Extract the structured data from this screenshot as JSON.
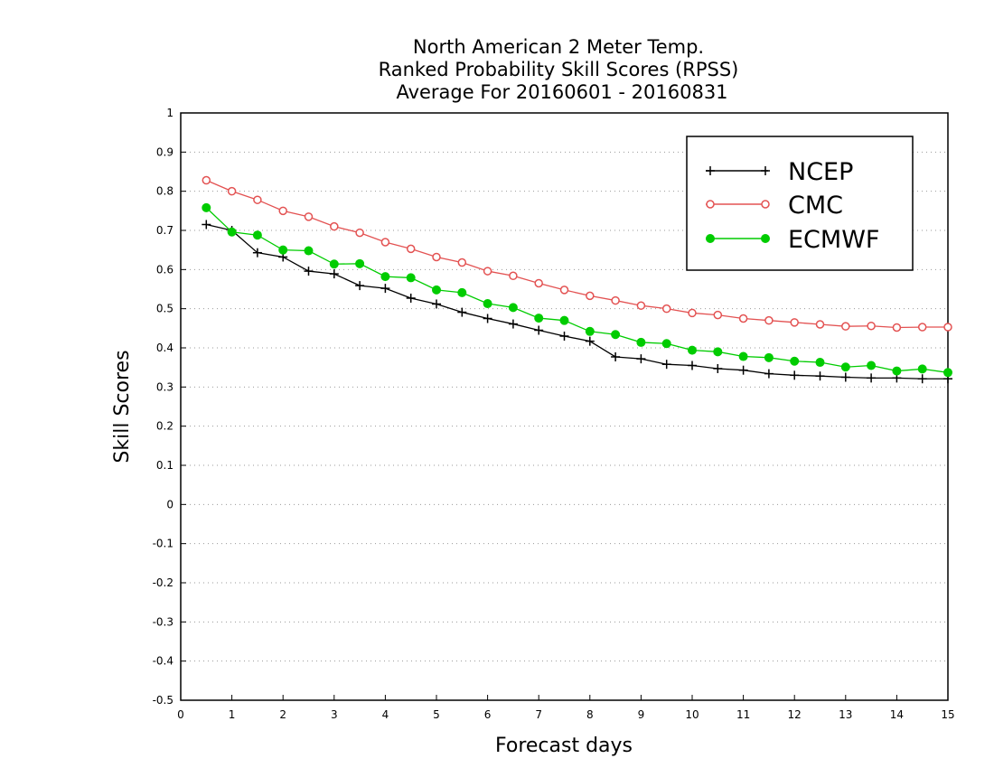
{
  "chart_data": {
    "type": "line",
    "title": [
      "North American 2 Meter Temp.",
      "Ranked Probability Skill Scores (RPSS)",
      "Average For 20160601 - 20160831"
    ],
    "xlabel": "Forecast days",
    "ylabel": "Skill Scores",
    "xlim": [
      0,
      15
    ],
    "ylim": [
      -0.5,
      1
    ],
    "xticks": [
      "0",
      "1",
      "2",
      "3",
      "4",
      "5",
      "6",
      "7",
      "8",
      "9",
      "10",
      "11",
      "12",
      "13",
      "14",
      "15"
    ],
    "yticks": [
      "-0.5",
      "-0.4",
      "-0.3",
      "-0.2",
      "-0.1",
      "0",
      "0.1",
      "0.2",
      "0.3",
      "0.4",
      "0.5",
      "0.6",
      "0.7",
      "0.8",
      "0.9",
      "1"
    ],
    "grid": "horizontal dotted",
    "legend_position": "top-right",
    "x": [
      0.5,
      1,
      1.5,
      2,
      2.5,
      3,
      3.5,
      4,
      4.5,
      5,
      5.5,
      6,
      6.5,
      7,
      7.5,
      8,
      8.5,
      9,
      9.5,
      10,
      10.5,
      11,
      11.5,
      12,
      12.5,
      13,
      13.5,
      14,
      14.5,
      15
    ],
    "series": [
      {
        "name": "NCEP",
        "color": "#000000",
        "marker": "plus",
        "values": [
          0.715,
          0.7,
          0.643,
          0.632,
          0.596,
          0.589,
          0.559,
          0.552,
          0.527,
          0.512,
          0.491,
          0.475,
          0.461,
          0.445,
          0.43,
          0.417,
          0.377,
          0.372,
          0.358,
          0.355,
          0.347,
          0.343,
          0.334,
          0.33,
          0.328,
          0.325,
          0.323,
          0.323,
          0.321,
          0.321
        ]
      },
      {
        "name": "CMC",
        "color": "#e35252",
        "marker": "open-circle",
        "values": [
          0.828,
          0.8,
          0.778,
          0.75,
          0.735,
          0.71,
          0.694,
          0.67,
          0.653,
          0.632,
          0.618,
          0.596,
          0.584,
          0.565,
          0.548,
          0.533,
          0.521,
          0.508,
          0.5,
          0.489,
          0.484,
          0.475,
          0.47,
          0.465,
          0.46,
          0.455,
          0.456,
          0.452,
          0.453,
          0.453
        ]
      },
      {
        "name": "ECMWF",
        "color": "#00cc00",
        "marker": "filled-circle",
        "values": [
          0.758,
          0.696,
          0.688,
          0.65,
          0.648,
          0.614,
          0.615,
          0.582,
          0.579,
          0.548,
          0.541,
          0.513,
          0.503,
          0.476,
          0.47,
          0.442,
          0.434,
          0.414,
          0.411,
          0.394,
          0.39,
          0.378,
          0.375,
          0.366,
          0.363,
          0.351,
          0.355,
          0.341,
          0.346,
          0.337
        ]
      }
    ]
  }
}
